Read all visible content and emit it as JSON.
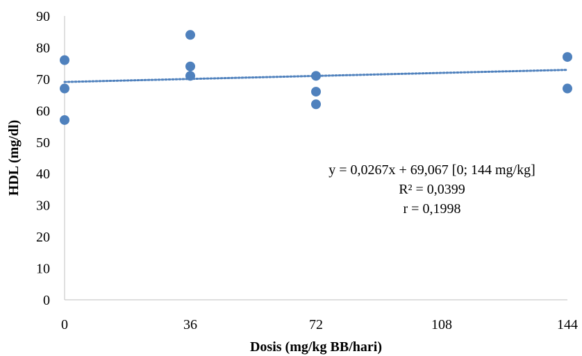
{
  "chart_data": {
    "type": "scatter",
    "title": "",
    "xlabel": "Dosis (mg/kg BB/hari)",
    "ylabel": "HDL (mg/dl)",
    "xlim": [
      0,
      144
    ],
    "ylim": [
      0,
      90
    ],
    "xticks": [
      "0",
      "36",
      "72",
      "108",
      "144"
    ],
    "xtick_values": [
      0,
      36,
      72,
      108,
      144
    ],
    "yticks": [
      "0",
      "10",
      "20",
      "30",
      "40",
      "50",
      "60",
      "70",
      "80",
      "90"
    ],
    "ytick_values": [
      0,
      10,
      20,
      30,
      40,
      50,
      60,
      70,
      80,
      90
    ],
    "grid": false,
    "series": [
      {
        "marker_color": "#4F81BD",
        "points": [
          {
            "x": 0,
            "y": 76
          },
          {
            "x": 0,
            "y": 67
          },
          {
            "x": 0,
            "y": 57
          },
          {
            "x": 36,
            "y": 84
          },
          {
            "x": 36,
            "y": 74
          },
          {
            "x": 36,
            "y": 71
          },
          {
            "x": 72,
            "y": 71
          },
          {
            "x": 72,
            "y": 66
          },
          {
            "x": 72,
            "y": 62
          },
          {
            "x": 144,
            "y": 77
          },
          {
            "x": 144,
            "y": 67
          }
        ]
      }
    ],
    "trendline": {
      "style": "dotted",
      "color": "#4F81BD",
      "slope": 0.0267,
      "intercept": 69.067,
      "x_range": [
        0,
        144
      ]
    },
    "annotations": [
      "y = 0,0267x + 69,067 [0; 144 mg/kg]",
      "R² = 0,0399",
      "r = 0,1998"
    ]
  }
}
